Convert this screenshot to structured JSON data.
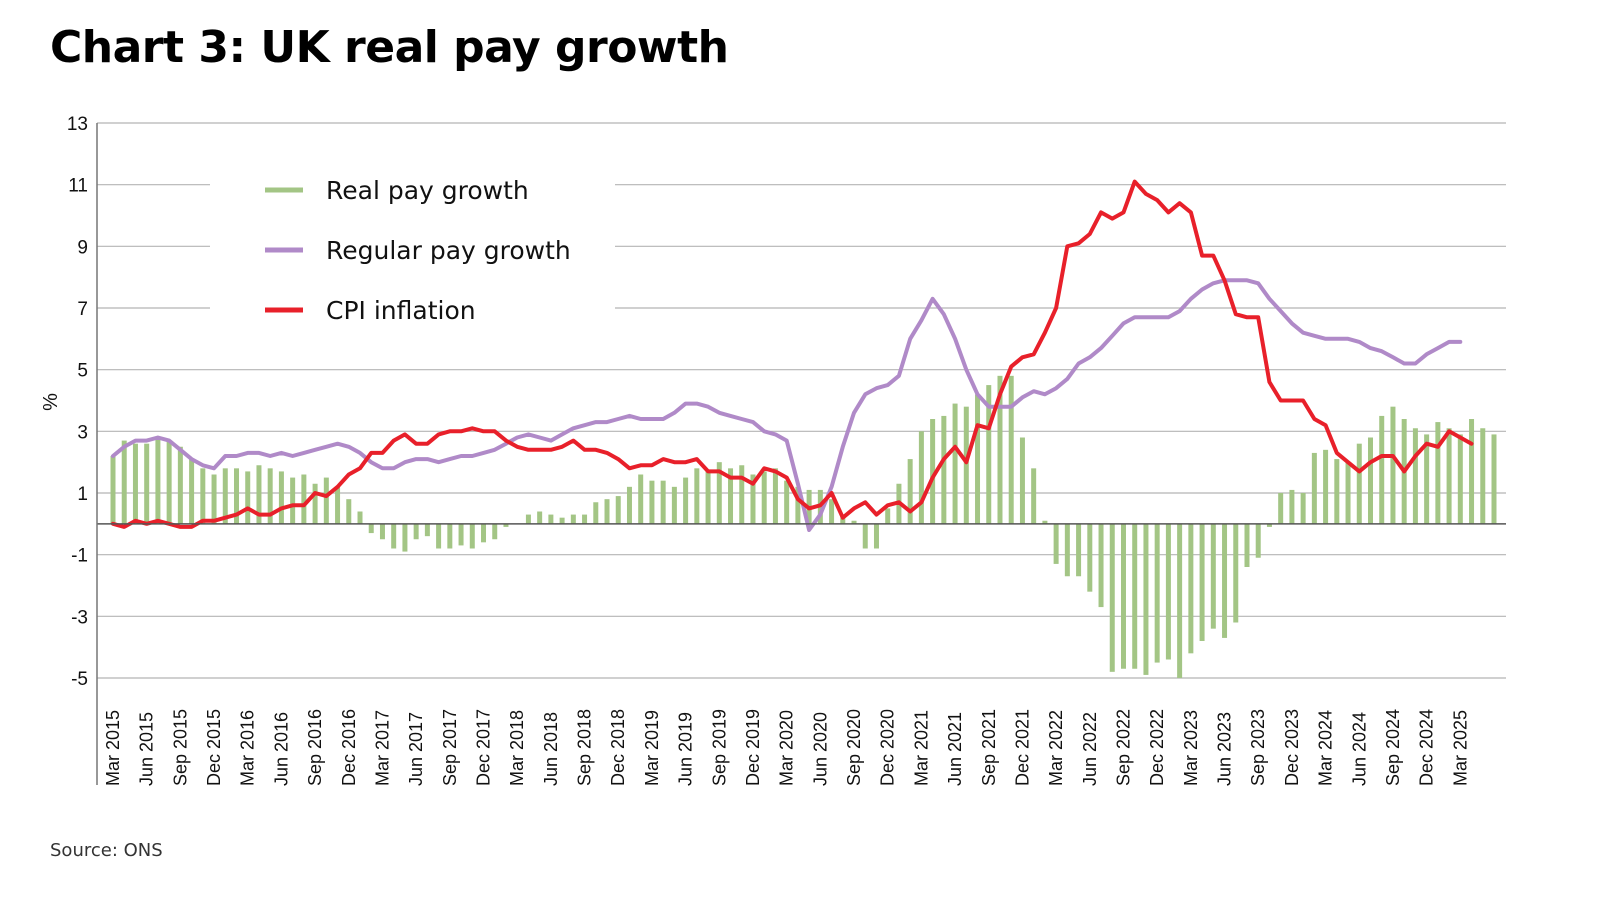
{
  "title": "Chart 3: UK real pay growth",
  "source": "Source: ONS",
  "chart_data": {
    "type": "bar+line",
    "title": "Chart 3: UK real pay growth",
    "xlabel": "",
    "ylabel": "%",
    "ylim": [
      -5,
      13
    ],
    "yticks": [
      13,
      11,
      9,
      7,
      5,
      3,
      1,
      -1,
      -3,
      -5
    ],
    "grid": true,
    "legend_position": "top-left",
    "x_start": "Mar 2015",
    "x_end": "Mar 2025",
    "frequency": "monthly",
    "xtick_labels": [
      "Mar 2015",
      "Jun 2015",
      "Sep 2015",
      "Dec 2015",
      "Mar 2016",
      "Jun 2016",
      "Sep 2016",
      "Dec 2016",
      "Mar 2017",
      "Jun 2017",
      "Sep 2017",
      "Dec 2017",
      "Mar 2018",
      "Jun 2018",
      "Sep 2018",
      "Dec 2018",
      "Mar 2019",
      "Jun 2019",
      "Sep 2019",
      "Dec 2019",
      "Mar 2020",
      "Jun 2020",
      "Sep 2020",
      "Dec 2020",
      "Mar 2021",
      "Jun 2021",
      "Sep 2021",
      "Dec 2021",
      "Mar 2022",
      "Jun 2022",
      "Sep 2022",
      "Dec 2022",
      "Mar 2023",
      "Jun 2023",
      "Sep 2023",
      "Dec 2023",
      "Mar 2024",
      "Jun 2024",
      "Sep 2024",
      "Dec 2024",
      "Mar 2025"
    ],
    "series": [
      {
        "name": "Real pay growth",
        "type": "bar",
        "color": "#a3c585",
        "values": [
          2.2,
          2.7,
          2.6,
          2.6,
          2.8,
          2.7,
          2.5,
          2.1,
          1.8,
          1.6,
          1.8,
          1.8,
          1.7,
          1.9,
          1.8,
          1.7,
          1.5,
          1.6,
          1.3,
          1.5,
          1.2,
          0.8,
          0.4,
          -0.3,
          -0.5,
          -0.8,
          -0.9,
          -0.5,
          -0.4,
          -0.8,
          -0.8,
          -0.7,
          -0.8,
          -0.6,
          -0.5,
          -0.1,
          0.0,
          0.3,
          0.4,
          0.3,
          0.2,
          0.3,
          0.3,
          0.7,
          0.8,
          0.9,
          1.2,
          1.6,
          1.4,
          1.4,
          1.2,
          1.5,
          1.8,
          1.7,
          2.0,
          1.8,
          1.9,
          1.6,
          1.7,
          1.8,
          1.4,
          1.2,
          1.1,
          1.1,
          0.8,
          0.3,
          0.1,
          -0.8,
          -0.8,
          0.5,
          1.3,
          2.1,
          3.0,
          3.4,
          3.5,
          3.9,
          3.8,
          4.2,
          4.5,
          4.8,
          4.8,
          2.8,
          1.8,
          0.1,
          -1.3,
          -1.7,
          -1.7,
          -2.2,
          -2.7,
          -4.8,
          -4.7,
          -4.7,
          -4.9,
          -4.5,
          -4.4,
          -5.0,
          -4.2,
          -3.8,
          -3.4,
          -3.7,
          -3.2,
          -1.4,
          -1.1,
          -0.1,
          1.0,
          1.1,
          1.0,
          2.3,
          2.4,
          2.1,
          2.0,
          2.6,
          2.8,
          3.5,
          3.8,
          3.4,
          3.1,
          2.9,
          3.3,
          3.1,
          2.9,
          3.4,
          3.1,
          2.9
        ]
      },
      {
        "name": "Regular pay growth",
        "type": "line",
        "color": "#b08ac8",
        "values": [
          2.2,
          2.5,
          2.7,
          2.7,
          2.8,
          2.7,
          2.4,
          2.1,
          1.9,
          1.8,
          2.2,
          2.2,
          2.3,
          2.3,
          2.2,
          2.3,
          2.2,
          2.3,
          2.4,
          2.5,
          2.6,
          2.5,
          2.3,
          2.0,
          1.8,
          1.8,
          2.0,
          2.1,
          2.1,
          2.0,
          2.1,
          2.2,
          2.2,
          2.3,
          2.4,
          2.6,
          2.8,
          2.9,
          2.8,
          2.7,
          2.9,
          3.1,
          3.2,
          3.3,
          3.3,
          3.4,
          3.5,
          3.4,
          3.4,
          3.4,
          3.6,
          3.9,
          3.9,
          3.8,
          3.6,
          3.5,
          3.4,
          3.3,
          3.0,
          2.9,
          2.7,
          1.3,
          -0.2,
          0.3,
          1.2,
          2.5,
          3.6,
          4.2,
          4.4,
          4.5,
          4.8,
          6.0,
          6.6,
          7.3,
          6.8,
          6.0,
          5.0,
          4.2,
          3.8,
          3.8,
          3.8,
          4.1,
          4.3,
          4.2,
          4.4,
          4.7,
          5.2,
          5.4,
          5.7,
          6.1,
          6.5,
          6.7,
          6.7,
          6.7,
          6.7,
          6.9,
          7.3,
          7.6,
          7.8,
          7.9,
          7.9,
          7.9,
          7.8,
          7.3,
          6.9,
          6.5,
          6.2,
          6.1,
          6.0,
          6.0,
          6.0,
          5.9,
          5.7,
          5.6,
          5.4,
          5.2,
          5.2,
          5.5,
          5.7,
          5.9,
          5.9
        ]
      },
      {
        "name": "CPI inflation",
        "type": "line",
        "color": "#e8202a",
        "values": [
          0.0,
          -0.1,
          0.1,
          0.0,
          0.1,
          0.0,
          -0.1,
          -0.1,
          0.1,
          0.1,
          0.2,
          0.3,
          0.5,
          0.3,
          0.3,
          0.5,
          0.6,
          0.6,
          1.0,
          0.9,
          1.2,
          1.6,
          1.8,
          2.3,
          2.3,
          2.7,
          2.9,
          2.6,
          2.6,
          2.9,
          3.0,
          3.0,
          3.1,
          3.0,
          3.0,
          2.7,
          2.5,
          2.4,
          2.4,
          2.4,
          2.5,
          2.7,
          2.4,
          2.4,
          2.3,
          2.1,
          1.8,
          1.9,
          1.9,
          2.1,
          2.0,
          2.0,
          2.1,
          1.7,
          1.7,
          1.5,
          1.5,
          1.3,
          1.8,
          1.7,
          1.5,
          0.8,
          0.5,
          0.6,
          1.0,
          0.2,
          0.5,
          0.7,
          0.3,
          0.6,
          0.7,
          0.4,
          0.7,
          1.5,
          2.1,
          2.5,
          2.0,
          3.2,
          3.1,
          4.2,
          5.1,
          5.4,
          5.5,
          6.2,
          7.0,
          9.0,
          9.1,
          9.4,
          10.1,
          9.9,
          10.1,
          11.1,
          10.7,
          10.5,
          10.1,
          10.4,
          10.1,
          8.7,
          8.7,
          7.9,
          6.8,
          6.7,
          6.7,
          4.6,
          4.0,
          4.0,
          4.0,
          3.4,
          3.2,
          2.3,
          2.0,
          1.7,
          2.0,
          2.2,
          2.2,
          1.7,
          2.2,
          2.6,
          2.5,
          3.0,
          2.8,
          2.6
        ]
      }
    ]
  }
}
